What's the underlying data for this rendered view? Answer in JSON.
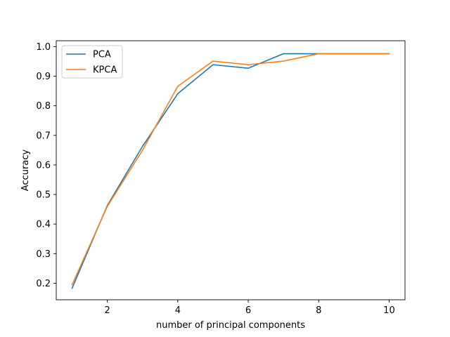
{
  "chart_data": {
    "type": "line",
    "title": "",
    "xlabel": "number of principal components",
    "ylabel": "Accuracy",
    "xlim": [
      0.55,
      10.45
    ],
    "ylim": [
      0.144,
      1.02
    ],
    "xticks": [
      2,
      4,
      6,
      8,
      10
    ],
    "yticks": [
      0.2,
      0.3,
      0.4,
      0.5,
      0.6,
      0.7,
      0.8,
      0.9,
      1.0
    ],
    "xtick_labels": [
      "2",
      "4",
      "6",
      "8",
      "10"
    ],
    "ytick_labels": [
      "0.2",
      "0.3",
      "0.4",
      "0.5",
      "0.6",
      "0.7",
      "0.8",
      "0.9",
      "1.0"
    ],
    "grid": false,
    "legend_position": "upper-left",
    "x": [
      1,
      2,
      3,
      4,
      5,
      6,
      7,
      8,
      9,
      10
    ],
    "series": [
      {
        "name": "PCA",
        "color": "#1f77b4",
        "values": [
          0.183,
          0.463,
          0.663,
          0.841,
          0.939,
          0.927,
          0.976,
          0.976,
          0.976,
          0.976
        ]
      },
      {
        "name": "KPCA",
        "color": "#ff7f0e",
        "values": [
          0.195,
          0.46,
          0.65,
          0.866,
          0.951,
          0.939,
          0.951,
          0.976,
          0.976,
          0.976
        ]
      }
    ]
  }
}
